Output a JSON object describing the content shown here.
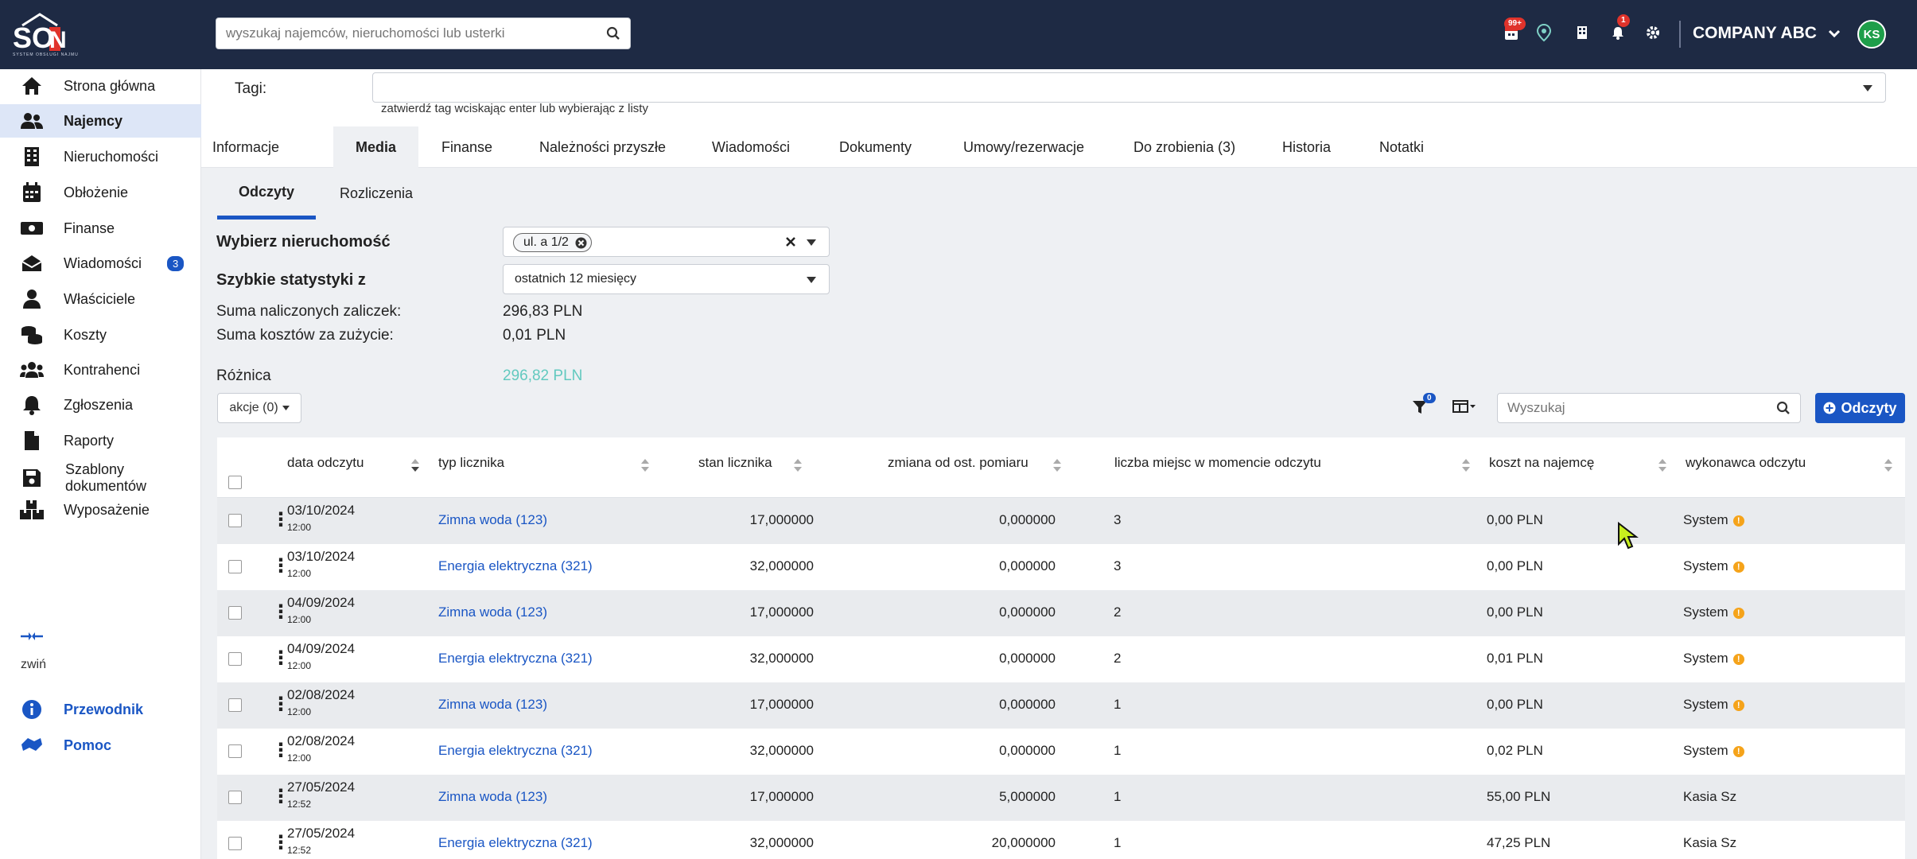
{
  "header": {
    "logo_text": "SON",
    "logo_subtext": "SYSTEM OBSŁUGI NAJMU",
    "search_placeholder": "wyszukaj najemców, nieruchomości lub usterki",
    "badges": {
      "calendar": "99+",
      "notifications": "1"
    },
    "company": "COMPANY ABC",
    "avatar_initials": "KS",
    "icons": [
      "search-icon",
      "calendar-icon",
      "map-pin-icon",
      "building-icon",
      "bell-icon",
      "gear-icon",
      "chevron-down-icon"
    ]
  },
  "sidebar": {
    "items": [
      {
        "label": "Strona główna",
        "icon": "home-icon"
      },
      {
        "label": "Najemcy",
        "icon": "users-icon",
        "active": true
      },
      {
        "label": "Nieruchomości",
        "icon": "building-icon"
      },
      {
        "label": "Obłożenie",
        "icon": "calendar-icon"
      },
      {
        "label": "Finanse",
        "icon": "money-icon"
      },
      {
        "label": "Wiadomości",
        "icon": "envelope-icon",
        "badge": "3"
      },
      {
        "label": "Właściciele",
        "icon": "user-tie-icon"
      },
      {
        "label": "Koszty",
        "icon": "coins-icon"
      },
      {
        "label": "Kontrahenci",
        "icon": "people-group-icon"
      },
      {
        "label": "Zgłoszenia",
        "icon": "bell-icon"
      },
      {
        "label": "Raporty",
        "icon": "file-icon"
      },
      {
        "label": "Szablony dokumentów",
        "icon": "save-icon"
      },
      {
        "label": "Wyposażenie",
        "icon": "boxes-icon"
      }
    ],
    "collapse_label": "zwiń",
    "links": [
      {
        "label": "Przewodnik",
        "icon": "info-icon"
      },
      {
        "label": "Pomoc",
        "icon": "help-icon"
      }
    ]
  },
  "tags": {
    "label": "Tagi:",
    "hint": "zatwierdź tag wciskając enter lub wybierając z listy"
  },
  "tabs": [
    {
      "label": "Informacje"
    },
    {
      "label": "Media",
      "active": true
    },
    {
      "label": "Finanse"
    },
    {
      "label": "Należności przyszłe"
    },
    {
      "label": "Wiadomości"
    },
    {
      "label": "Dokumenty"
    },
    {
      "label": "Umowy/rezerwacje"
    },
    {
      "label": "Do zrobienia (3)"
    },
    {
      "label": "Historia"
    },
    {
      "label": "Notatki"
    }
  ],
  "subtabs": [
    {
      "label": "Odczyty",
      "active": true
    },
    {
      "label": "Rozliczenia"
    }
  ],
  "form": {
    "property_label": "Wybierz nieruchomość",
    "property_chip": "ul. a 1/2",
    "stats_label": "Szybkie statystyki z",
    "stats_period": "ostatnich 12 miesięcy",
    "sum_advances_label": "Suma naliczonych zaliczek:",
    "sum_advances_value": "296,83 PLN",
    "sum_costs_label": "Suma kosztów za zużycie:",
    "sum_costs_value": "0,01 PLN",
    "diff_label": "Różnica",
    "diff_value": "296,82 PLN",
    "diff_color": "#62c9bf"
  },
  "toolbar": {
    "actions_label": "akcje (0)",
    "filter_badge": "0",
    "search_placeholder": "Wyszukaj",
    "add_label": "Odczyty"
  },
  "table": {
    "columns": [
      "data odczytu",
      "typ licznika",
      "stan licznika",
      "zmiana od ost. pomiaru",
      "liczba miejsc w momencie odczytu",
      "koszt na najemcę",
      "wykonawca odczytu"
    ],
    "rows": [
      {
        "date": "03/10/2024",
        "time": "12:00",
        "type": "Zimna woda (123)",
        "reading": "17,000000",
        "change": "0,000000",
        "places": "3",
        "cost": "0,00 PLN",
        "by": "System",
        "warn": true
      },
      {
        "date": "03/10/2024",
        "time": "12:00",
        "type": "Energia elektryczna (321)",
        "reading": "32,000000",
        "change": "0,000000",
        "places": "3",
        "cost": "0,00 PLN",
        "by": "System",
        "warn": true
      },
      {
        "date": "04/09/2024",
        "time": "12:00",
        "type": "Zimna woda (123)",
        "reading": "17,000000",
        "change": "0,000000",
        "places": "2",
        "cost": "0,00 PLN",
        "by": "System",
        "warn": true
      },
      {
        "date": "04/09/2024",
        "time": "12:00",
        "type": "Energia elektryczna (321)",
        "reading": "32,000000",
        "change": "0,000000",
        "places": "2",
        "cost": "0,01 PLN",
        "by": "System",
        "warn": true
      },
      {
        "date": "02/08/2024",
        "time": "12:00",
        "type": "Zimna woda (123)",
        "reading": "17,000000",
        "change": "0,000000",
        "places": "1",
        "cost": "0,00 PLN",
        "by": "System",
        "warn": true
      },
      {
        "date": "02/08/2024",
        "time": "12:00",
        "type": "Energia elektryczna (321)",
        "reading": "32,000000",
        "change": "0,000000",
        "places": "1",
        "cost": "0,02 PLN",
        "by": "System",
        "warn": true
      },
      {
        "date": "27/05/2024",
        "time": "12:52",
        "type": "Zimna woda (123)",
        "reading": "17,000000",
        "change": "5,000000",
        "places": "1",
        "cost": "55,00 PLN",
        "by": "Kasia Sz",
        "warn": false
      },
      {
        "date": "27/05/2024",
        "time": "12:52",
        "type": "Energia elektryczna (321)",
        "reading": "32,000000",
        "change": "20,000000",
        "places": "1",
        "cost": "47,25 PLN",
        "by": "Kasia Sz",
        "warn": false
      }
    ]
  }
}
